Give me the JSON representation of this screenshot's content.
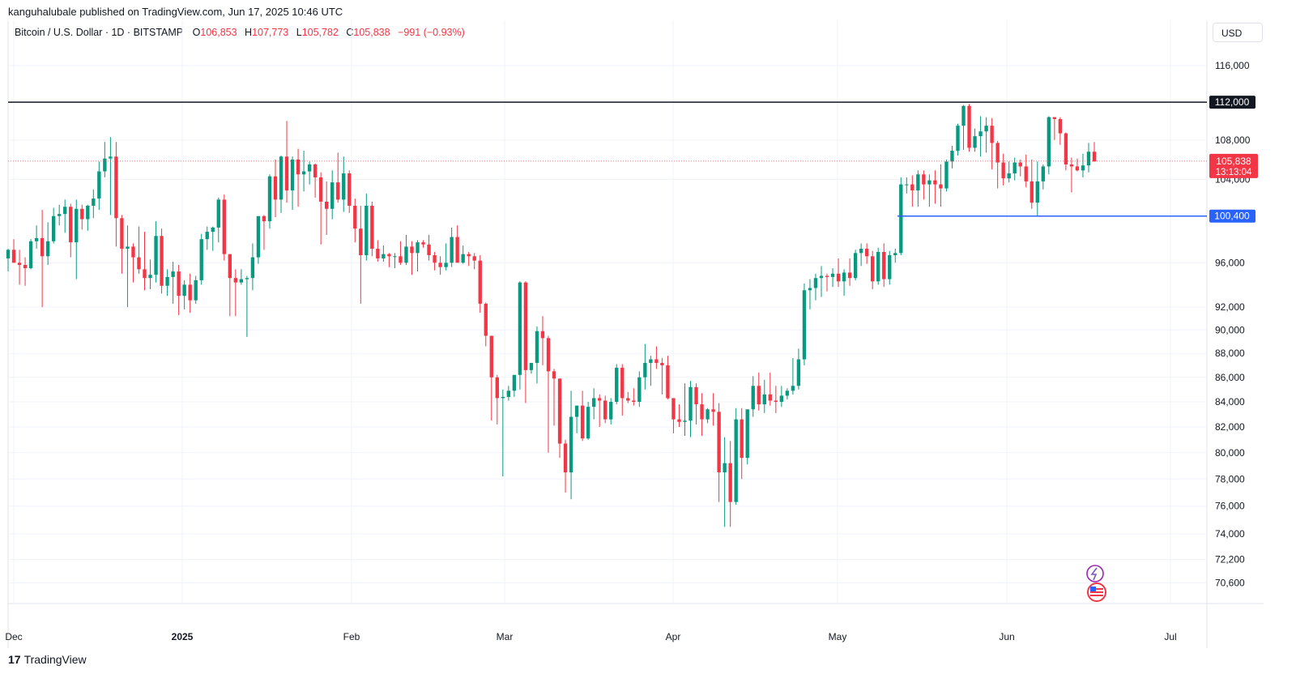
{
  "publisher_line": "kanguhalubale published on TradingView.com, Jun 17, 2025 10:46 UTC",
  "symbol": {
    "name": "Bitcoin / U.S. Dollar · 1D · BITSTAMP",
    "o_label": "O",
    "o": "106,853",
    "h_label": "H",
    "h": "107,773",
    "l_label": "L",
    "l": "105,782",
    "c_label": "C",
    "c": "105,838",
    "change": "−991 (−0.93%)"
  },
  "currency": "USD",
  "footer": {
    "logo_mark": "17",
    "logo_text": "TradingView"
  },
  "colors": {
    "up": "#089981",
    "down": "#f23645",
    "resistance": "#131722",
    "support": "#2962ff",
    "grid": "#f0f3fa"
  },
  "chart_data": {
    "type": "candlestick",
    "title": "Bitcoin / U.S. Dollar · 1D · BITSTAMP",
    "y_scale": "log",
    "ylim": [
      69000,
      120000
    ],
    "y_ticks": [
      "116,000",
      "108,000",
      "104,000",
      "96,000",
      "92,000",
      "90,000",
      "88,000",
      "86,000",
      "84,000",
      "82,000",
      "80,000",
      "78,000",
      "76,000",
      "74,000",
      "72,200",
      "70,600"
    ],
    "x_ticks": [
      "Dec",
      "2025",
      "Feb",
      "Mar",
      "Apr",
      "May",
      "Jun",
      "Jul"
    ],
    "grid": true,
    "horizontal_levels": [
      {
        "label": "112,000",
        "value": 112000,
        "color": "#131722"
      },
      {
        "label": "100,400",
        "value": 100400,
        "color": "#2962ff"
      }
    ],
    "last_price": {
      "label": "105,838",
      "value": 105838,
      "countdown": "13:13:04"
    },
    "ohlc": [
      [
        96400,
        97300,
        95200,
        97200
      ],
      [
        97200,
        98200,
        96000,
        96000
      ],
      [
        96000,
        97200,
        94000,
        95800
      ],
      [
        95800,
        96500,
        93900,
        95500
      ],
      [
        95500,
        98200,
        95400,
        98000
      ],
      [
        98000,
        99500,
        97300,
        98300
      ],
      [
        98300,
        101000,
        92000,
        96600
      ],
      [
        96600,
        99800,
        95800,
        98000
      ],
      [
        98000,
        101200,
        97800,
        100400
      ],
      [
        100400,
        101500,
        99500,
        100600
      ],
      [
        100600,
        102000,
        98800,
        101300
      ],
      [
        101300,
        101600,
        96500,
        97900
      ],
      [
        97900,
        102000,
        94500,
        101100
      ],
      [
        101100,
        101500,
        99100,
        100100
      ],
      [
        100100,
        101500,
        99000,
        101400
      ],
      [
        101400,
        103000,
        100200,
        102100
      ],
      [
        102100,
        105800,
        101000,
        104800
      ],
      [
        104800,
        107800,
        104200,
        106100
      ],
      [
        106100,
        108300,
        100500,
        106300
      ],
      [
        106300,
        107800,
        97500,
        100200
      ],
      [
        100200,
        100500,
        95000,
        97300
      ],
      [
        97300,
        99500,
        92000,
        97500
      ],
      [
        97500,
        97800,
        94200,
        96500
      ],
      [
        96500,
        99400,
        95000,
        95400
      ],
      [
        95400,
        98900,
        93500,
        94600
      ],
      [
        94600,
        96300,
        93600,
        94900
      ],
      [
        94900,
        99900,
        94200,
        98500
      ],
      [
        98500,
        99200,
        93200,
        93900
      ],
      [
        93900,
        95400,
        93000,
        94700
      ],
      [
        94700,
        96100,
        92300,
        95200
      ],
      [
        95200,
        95800,
        91300,
        93000
      ],
      [
        93000,
        94400,
        91800,
        94000
      ],
      [
        94000,
        95000,
        91500,
        92600
      ],
      [
        92600,
        94800,
        92300,
        94400
      ],
      [
        94400,
        98700,
        94000,
        98200
      ],
      [
        98200,
        99400,
        97200,
        98900
      ],
      [
        98900,
        99400,
        97100,
        99300
      ],
      [
        99300,
        102200,
        97900,
        102000
      ],
      [
        102000,
        102500,
        96200,
        96800
      ],
      [
        96800,
        96800,
        91200,
        94600
      ],
      [
        94600,
        95400,
        91200,
        94200
      ],
      [
        94200,
        95400,
        94000,
        94500
      ],
      [
        94500,
        94800,
        89400,
        94600
      ],
      [
        94600,
        97800,
        93500,
        96500
      ],
      [
        96500,
        100200,
        95900,
        100400
      ],
      [
        100400,
        100500,
        97200,
        99900
      ],
      [
        99900,
        104500,
        99200,
        104300
      ],
      [
        104300,
        106000,
        100300,
        102000
      ],
      [
        102000,
        106400,
        100700,
        106300
      ],
      [
        106300,
        110000,
        101700,
        102900
      ],
      [
        102900,
        106300,
        101000,
        106000
      ],
      [
        106000,
        107100,
        101300,
        104500
      ],
      [
        104500,
        106900,
        102800,
        104800
      ],
      [
        104800,
        105800,
        103500,
        105500
      ],
      [
        105500,
        105600,
        102200,
        104200
      ],
      [
        104200,
        104700,
        97700,
        101800
      ],
      [
        101800,
        103800,
        98600,
        101100
      ],
      [
        101100,
        104900,
        100100,
        103700
      ],
      [
        103700,
        106700,
        101700,
        102000
      ],
      [
        102000,
        106300,
        100800,
        104600
      ],
      [
        104600,
        104900,
        100700,
        101400
      ],
      [
        101400,
        102100,
        97900,
        99200
      ],
      [
        99200,
        101400,
        92300,
        96700
      ],
      [
        96700,
        102600,
        96200,
        101400
      ],
      [
        101400,
        101800,
        96600,
        97300
      ],
      [
        97300,
        98100,
        96100,
        96400
      ],
      [
        96400,
        97600,
        96100,
        96800
      ],
      [
        96800,
        96900,
        95600,
        96600
      ],
      [
        96600,
        96900,
        95500,
        96600
      ],
      [
        96600,
        98000,
        95800,
        96000
      ],
      [
        96000,
        98600,
        95800,
        97500
      ],
      [
        97500,
        98000,
        94900,
        96900
      ],
      [
        96900,
        98100,
        95200,
        97900
      ],
      [
        97900,
        98100,
        97400,
        97700
      ],
      [
        97700,
        98600,
        96200,
        96700
      ],
      [
        96700,
        97000,
        95300,
        96000
      ],
      [
        96000,
        96600,
        94900,
        95600
      ],
      [
        95600,
        97800,
        95300,
        96000
      ],
      [
        96000,
        99300,
        95600,
        98400
      ],
      [
        98400,
        99500,
        96200,
        96000
      ],
      [
        96000,
        97600,
        95900,
        96800
      ],
      [
        96800,
        97000,
        95700,
        96600
      ],
      [
        96600,
        96900,
        95400,
        96200
      ],
      [
        96200,
        96700,
        91500,
        92300
      ],
      [
        92300,
        92400,
        88600,
        89500
      ],
      [
        89500,
        89500,
        82500,
        86000
      ],
      [
        86000,
        86200,
        82200,
        84300
      ],
      [
        84300,
        85000,
        78200,
        84400
      ],
      [
        84400,
        85300,
        84100,
        84900
      ],
      [
        84900,
        86200,
        84400,
        86200
      ],
      [
        86200,
        94300,
        85000,
        94200
      ],
      [
        94200,
        94300,
        83900,
        86600
      ],
      [
        86600,
        87200,
        86300,
        87200
      ],
      [
        87200,
        90300,
        85500,
        89900
      ],
      [
        89900,
        91200,
        87000,
        89300
      ],
      [
        89300,
        89500,
        80000,
        86500
      ],
      [
        86500,
        86700,
        82100,
        85900
      ],
      [
        85900,
        85800,
        79600,
        80700
      ],
      [
        80700,
        81000,
        77000,
        78500
      ],
      [
        78500,
        84900,
        76500,
        82800
      ],
      [
        82800,
        83600,
        81500,
        83700
      ],
      [
        83700,
        84900,
        80900,
        81100
      ],
      [
        81100,
        84000,
        81000,
        83600
      ],
      [
        83600,
        85100,
        82600,
        84300
      ],
      [
        84300,
        84600,
        82000,
        84100
      ],
      [
        84100,
        84500,
        82300,
        82600
      ],
      [
        82600,
        84300,
        82200,
        84000
      ],
      [
        84000,
        87100,
        83800,
        86800
      ],
      [
        86800,
        87100,
        82900,
        84300
      ],
      [
        84300,
        84800,
        83900,
        84100
      ],
      [
        84100,
        85100,
        83700,
        84000
      ],
      [
        84000,
        86500,
        83600,
        86000
      ],
      [
        86000,
        88800,
        85000,
        87200
      ],
      [
        87200,
        87800,
        85300,
        87500
      ],
      [
        87500,
        88600,
        86700,
        87200
      ],
      [
        87200,
        87600,
        84600,
        87000
      ],
      [
        87000,
        87800,
        84200,
        84300
      ],
      [
        84300,
        84300,
        81500,
        82600
      ],
      [
        82600,
        83800,
        82000,
        82400
      ],
      [
        82400,
        85500,
        81300,
        82500
      ],
      [
        82500,
        85700,
        81200,
        85200
      ],
      [
        85200,
        85500,
        82200,
        83800
      ],
      [
        83800,
        84700,
        81300,
        82600
      ],
      [
        82600,
        83500,
        82300,
        83400
      ],
      [
        83400,
        84700,
        82100,
        83200
      ],
      [
        83200,
        83900,
        76300,
        78500
      ],
      [
        78500,
        81200,
        74500,
        79200
      ],
      [
        79200,
        80900,
        74500,
        76300
      ],
      [
        76300,
        83500,
        76100,
        82600
      ],
      [
        82600,
        83500,
        78000,
        79600
      ],
      [
        79600,
        83200,
        79100,
        83400
      ],
      [
        83400,
        86100,
        82800,
        85300
      ],
      [
        85300,
        86400,
        83300,
        83800
      ],
      [
        83800,
        85800,
        83100,
        84600
      ],
      [
        84600,
        86400,
        83700,
        84100
      ],
      [
        84100,
        85300,
        83100,
        84000
      ],
      [
        84000,
        85300,
        83600,
        84500
      ],
      [
        84500,
        85100,
        84200,
        84900
      ],
      [
        84900,
        87600,
        84600,
        85300
      ],
      [
        85300,
        88400,
        85000,
        87500
      ],
      [
        87500,
        94100,
        87000,
        93500
      ],
      [
        93500,
        94500,
        91800,
        93700
      ],
      [
        93700,
        95000,
        92600,
        94600
      ],
      [
        94600,
        95700,
        92900,
        94800
      ],
      [
        94800,
        95000,
        93400,
        94700
      ],
      [
        94700,
        95500,
        93800,
        95000
      ],
      [
        95000,
        96400,
        93800,
        94300
      ],
      [
        94300,
        95400,
        93000,
        95100
      ],
      [
        95100,
        96400,
        93900,
        94600
      ],
      [
        94600,
        97200,
        94400,
        96900
      ],
      [
        96900,
        97800,
        95700,
        97300
      ],
      [
        97300,
        97800,
        95900,
        96600
      ],
      [
        96600,
        97100,
        93600,
        94300
      ],
      [
        94300,
        97400,
        94000,
        97000
      ],
      [
        97000,
        97800,
        93800,
        94500
      ],
      [
        94500,
        97100,
        94000,
        96700
      ],
      [
        96700,
        97300,
        96000,
        96900
      ],
      [
        96900,
        104200,
        96700,
        103500
      ],
      [
        103500,
        104200,
        102600,
        103500
      ],
      [
        103500,
        104400,
        101300,
        102900
      ],
      [
        102900,
        104900,
        101300,
        104500
      ],
      [
        104500,
        104900,
        102000,
        103500
      ],
      [
        103500,
        104500,
        101300,
        103900
      ],
      [
        103900,
        104900,
        101600,
        103500
      ],
      [
        103500,
        105500,
        101300,
        103100
      ],
      [
        103100,
        106000,
        102800,
        105800
      ],
      [
        105800,
        107400,
        105100,
        106900
      ],
      [
        106900,
        109700,
        106400,
        109500
      ],
      [
        109500,
        111700,
        107000,
        111600
      ],
      [
        111600,
        111800,
        106800,
        107200
      ],
      [
        107200,
        109200,
        106800,
        108400
      ],
      [
        108400,
        110500,
        106300,
        108900
      ],
      [
        108900,
        110400,
        106700,
        109500
      ],
      [
        109500,
        110300,
        105000,
        107700
      ],
      [
        107700,
        107900,
        103100,
        105700
      ],
      [
        105700,
        106600,
        103400,
        104100
      ],
      [
        104100,
        105800,
        103700,
        104600
      ],
      [
        104600,
        106200,
        103900,
        105700
      ],
      [
        105700,
        106000,
        104300,
        105300
      ],
      [
        105300,
        106500,
        103200,
        103800
      ],
      [
        103800,
        106000,
        101100,
        101700
      ],
      [
        101700,
        105800,
        100400,
        103800
      ],
      [
        103800,
        105500,
        103000,
        105300
      ],
      [
        105300,
        110500,
        104500,
        110400
      ],
      [
        110400,
        110400,
        108000,
        110200
      ],
      [
        110200,
        110400,
        107500,
        108700
      ],
      [
        108700,
        108800,
        104900,
        105500
      ],
      [
        105500,
        106200,
        102700,
        105300
      ],
      [
        105300,
        106100,
        104800,
        104900
      ],
      [
        104900,
        106600,
        104200,
        105400
      ],
      [
        105400,
        107700,
        104700,
        106800
      ],
      [
        106800,
        107800,
        105800,
        105800
      ]
    ]
  }
}
